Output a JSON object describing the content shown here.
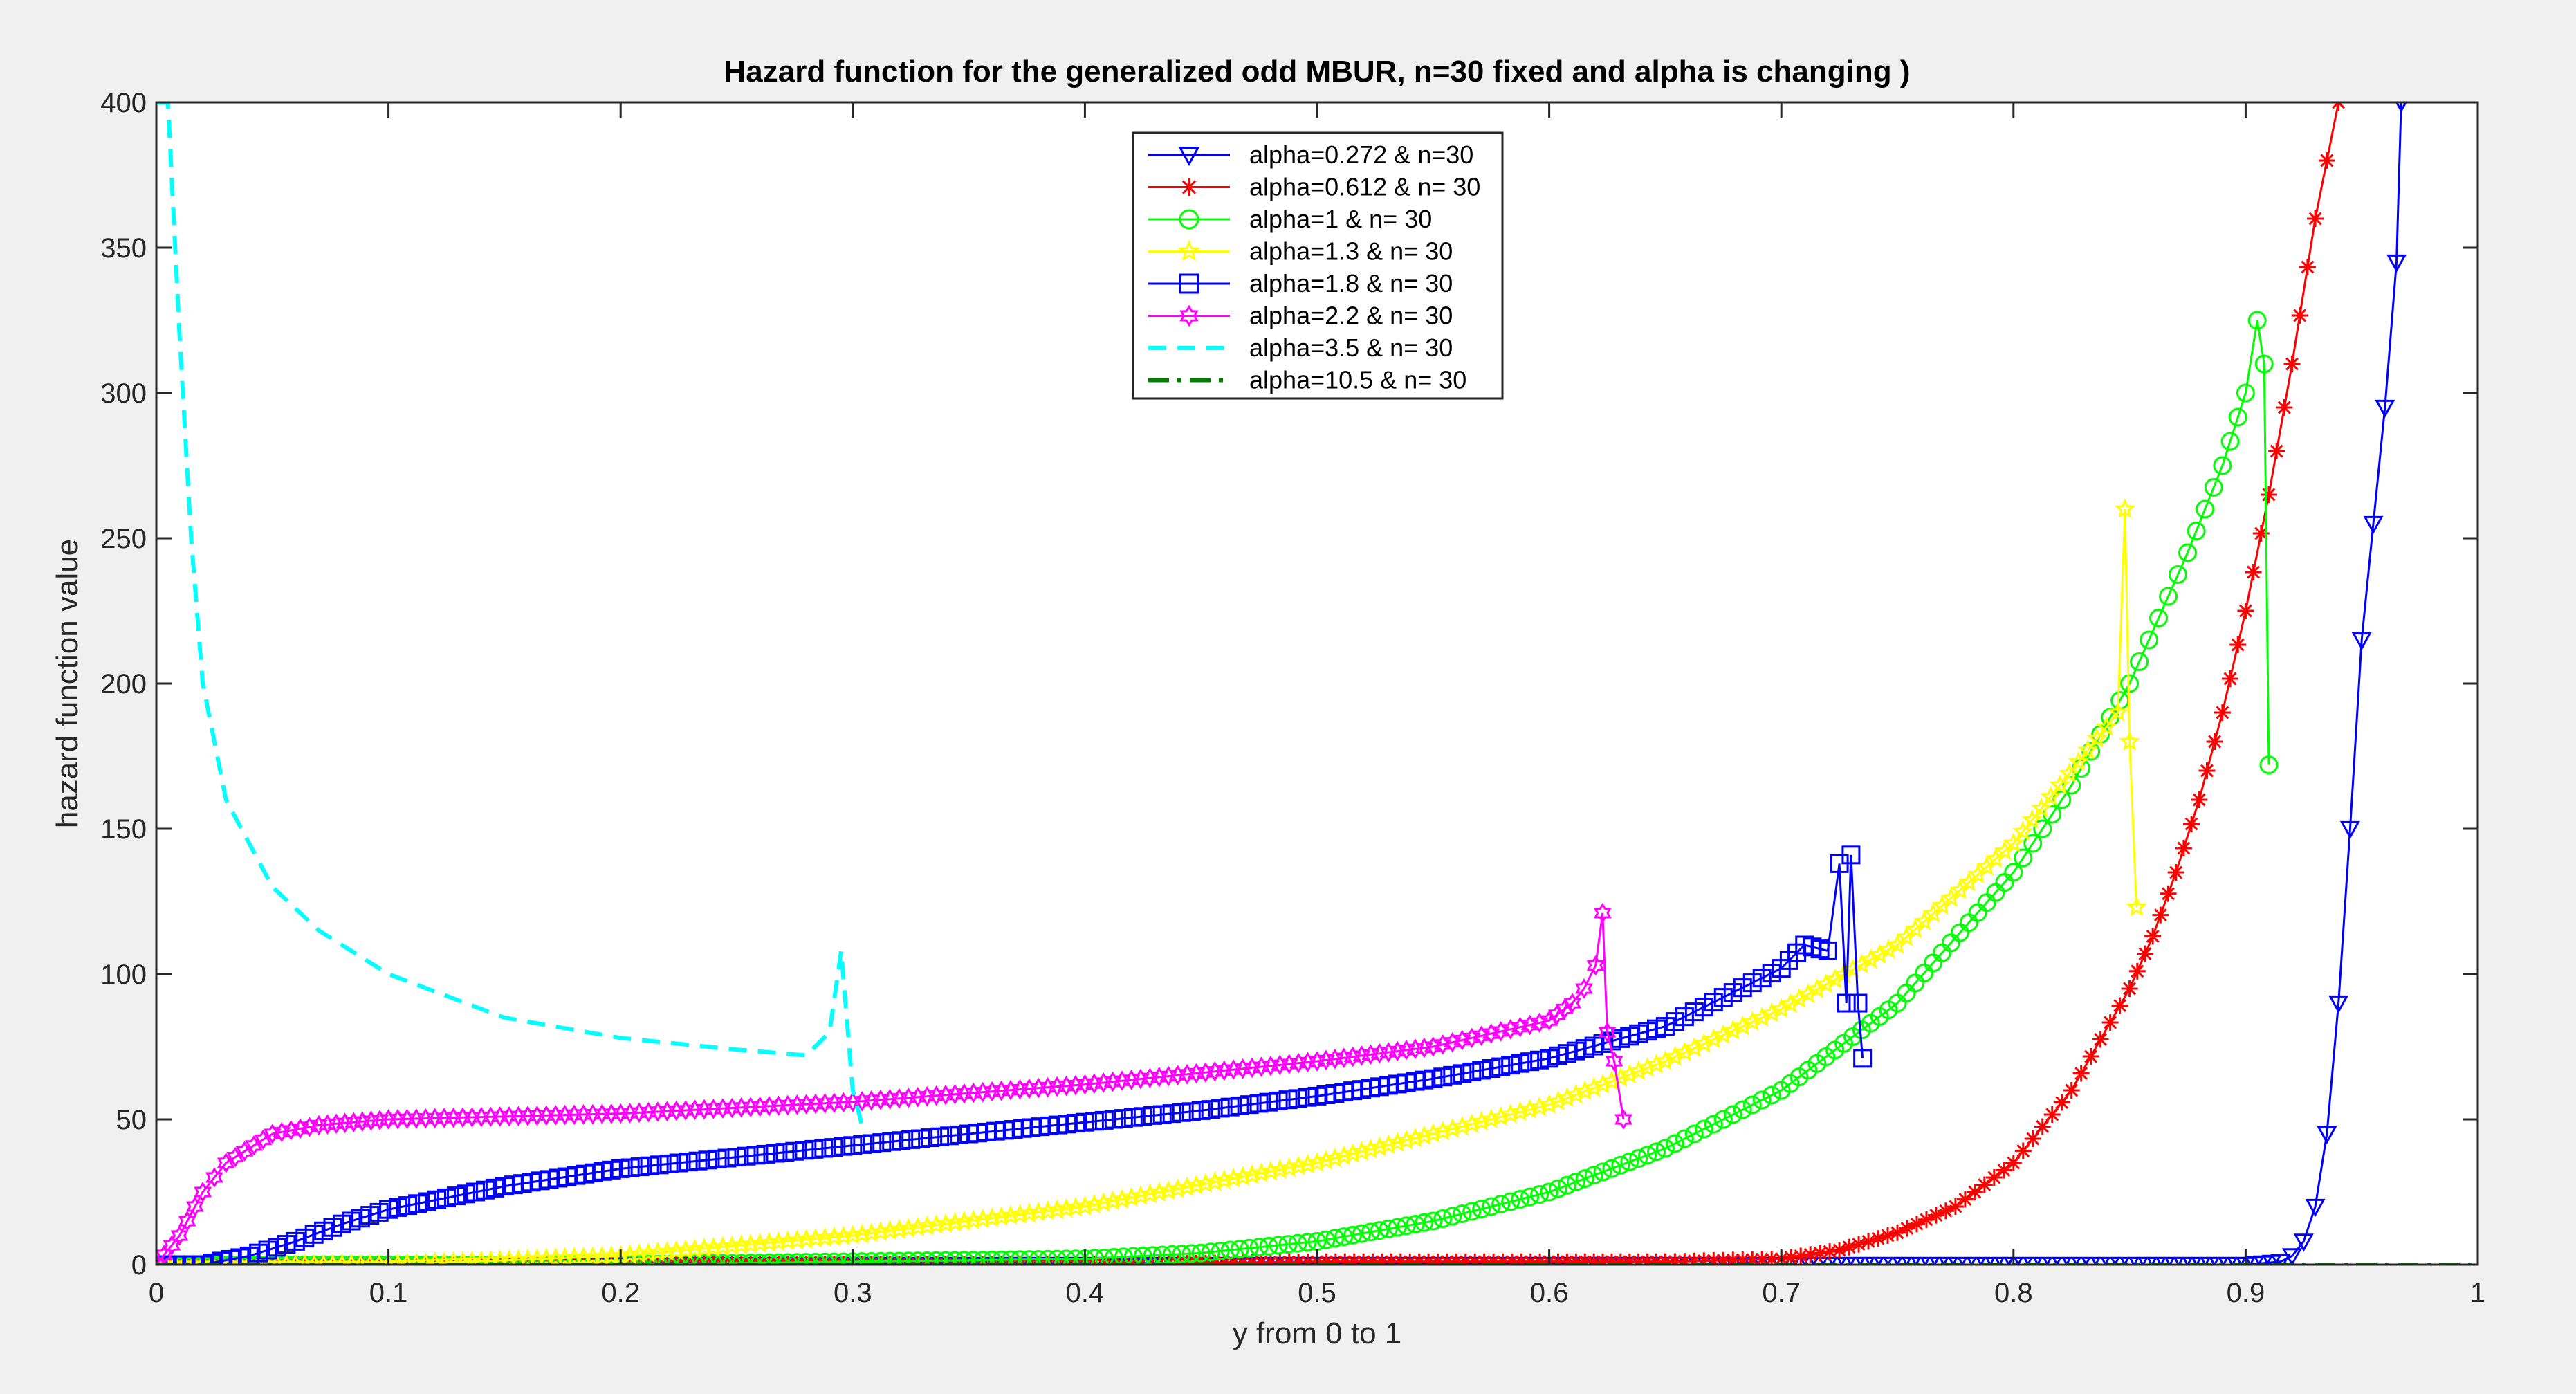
{
  "chart_data": {
    "type": "line",
    "title": "Hazard function for the generalized odd MBUR, n=30 fixed and alpha is changing )",
    "xlabel": "y from 0 to 1",
    "ylabel": "hazard function value",
    "xlim": [
      0,
      1
    ],
    "ylim": [
      0,
      400
    ],
    "x_ticks": [
      "0",
      "0.1",
      "0.2",
      "0.3",
      "0.4",
      "0.5",
      "0.6",
      "0.7",
      "0.8",
      "0.9",
      "1"
    ],
    "y_ticks": [
      "0",
      "50",
      "100",
      "150",
      "200",
      "250",
      "300",
      "350",
      "400"
    ],
    "grid": false,
    "legend_position": "top-center",
    "series": [
      {
        "name": "alpha=0.272 & n=30",
        "color": "#0000ff",
        "marker": "triangle-down",
        "line": "solid",
        "x": [
          0.0,
          0.1,
          0.2,
          0.3,
          0.4,
          0.5,
          0.6,
          0.7,
          0.8,
          0.85,
          0.9,
          0.915,
          0.92,
          0.925,
          0.93,
          0.935,
          0.94,
          0.945,
          0.95,
          0.955,
          0.96,
          0.965,
          0.967
        ],
        "y": [
          0,
          0,
          0,
          0,
          0,
          0,
          0,
          0,
          0,
          0,
          0,
          1,
          3,
          8,
          20,
          45,
          90,
          150,
          215,
          255,
          295,
          345,
          400
        ]
      },
      {
        "name": "alpha=0.612 & n= 30",
        "color": "#ff0000",
        "marker": "asterisk",
        "line": "solid",
        "x": [
          0.0,
          0.1,
          0.2,
          0.3,
          0.4,
          0.5,
          0.6,
          0.65,
          0.7,
          0.725,
          0.75,
          0.775,
          0.8,
          0.825,
          0.85,
          0.86,
          0.87,
          0.88,
          0.89,
          0.9,
          0.91,
          0.92,
          0.93,
          0.94
        ],
        "y": [
          0,
          0,
          0,
          0,
          0,
          1,
          1,
          1,
          2,
          5,
          11,
          20,
          35,
          60,
          95,
          113,
          135,
          160,
          190,
          225,
          265,
          310,
          360,
          400
        ]
      },
      {
        "name": "alpha=1 & n= 30",
        "color": "#00ff00",
        "marker": "circle",
        "line": "solid",
        "x": [
          0.0,
          0.1,
          0.2,
          0.3,
          0.4,
          0.45,
          0.5,
          0.55,
          0.6,
          0.65,
          0.7,
          0.75,
          0.8,
          0.825,
          0.85,
          0.875,
          0.89,
          0.9,
          0.905,
          0.908,
          0.91
        ],
        "y": [
          0,
          0,
          0,
          1,
          2,
          4,
          8,
          15,
          25,
          40,
          60,
          90,
          135,
          165,
          200,
          245,
          275,
          300,
          325,
          310,
          172
        ]
      },
      {
        "name": "alpha=1.3 & n= 30",
        "color": "#ffff00",
        "marker": "star",
        "line": "solid",
        "x": [
          0.0,
          0.1,
          0.2,
          0.3,
          0.4,
          0.5,
          0.55,
          0.6,
          0.65,
          0.7,
          0.75,
          0.8,
          0.82,
          0.84,
          0.845,
          0.848,
          0.85,
          0.853
        ],
        "y": [
          0,
          0,
          3,
          10,
          20,
          35,
          45,
          55,
          70,
          88,
          110,
          145,
          165,
          185,
          190,
          260,
          180,
          123
        ]
      },
      {
        "name": "alpha=1.8 & n= 30",
        "color": "#0000ff",
        "marker": "square",
        "line": "solid",
        "x": [
          0.0,
          0.02,
          0.04,
          0.06,
          0.08,
          0.1,
          0.15,
          0.2,
          0.25,
          0.3,
          0.35,
          0.4,
          0.45,
          0.5,
          0.55,
          0.6,
          0.65,
          0.7,
          0.71,
          0.72,
          0.725,
          0.728,
          0.73,
          0.733,
          0.735
        ],
        "y": [
          0,
          0,
          3,
          8,
          14,
          19,
          27,
          33,
          37,
          41,
          45,
          49,
          53,
          58,
          64,
          71,
          82,
          102,
          110,
          108,
          138,
          90,
          141,
          90,
          71
        ]
      },
      {
        "name": "alpha=2.2 & n= 30",
        "color": "#ff00ff",
        "marker": "hexagram",
        "line": "solid",
        "x": [
          0.0,
          0.01,
          0.02,
          0.03,
          0.05,
          0.07,
          0.1,
          0.2,
          0.3,
          0.4,
          0.5,
          0.55,
          0.6,
          0.61,
          0.615,
          0.62,
          0.623,
          0.625,
          0.628,
          0.632
        ],
        "y": [
          0,
          10,
          25,
          35,
          45,
          48,
          50,
          52,
          56,
          62,
          70,
          75,
          84,
          90,
          95,
          103,
          121,
          80,
          70,
          50
        ]
      },
      {
        "name": "alpha=3.5 & n= 30",
        "color": "#00ffff",
        "marker": "none",
        "line": "dashed",
        "x": [
          0.0,
          0.005,
          0.01,
          0.015,
          0.02,
          0.03,
          0.05,
          0.07,
          0.1,
          0.15,
          0.2,
          0.25,
          0.28,
          0.29,
          0.295,
          0.3,
          0.305
        ],
        "y": [
          400,
          400,
          320,
          250,
          200,
          160,
          130,
          115,
          100,
          85,
          78,
          74,
          72,
          80,
          108,
          60,
          45
        ]
      },
      {
        "name": "alpha=10.5 & n= 30",
        "color": "#008000",
        "marker": "none",
        "line": "dashdot",
        "x": [
          0.0,
          0.1,
          0.2,
          0.3,
          0.4,
          0.5,
          0.6,
          0.7,
          0.8,
          0.9,
          1.0
        ],
        "y": [
          0,
          0,
          0,
          0,
          0,
          0,
          0,
          0,
          0,
          0,
          0
        ]
      }
    ]
  }
}
